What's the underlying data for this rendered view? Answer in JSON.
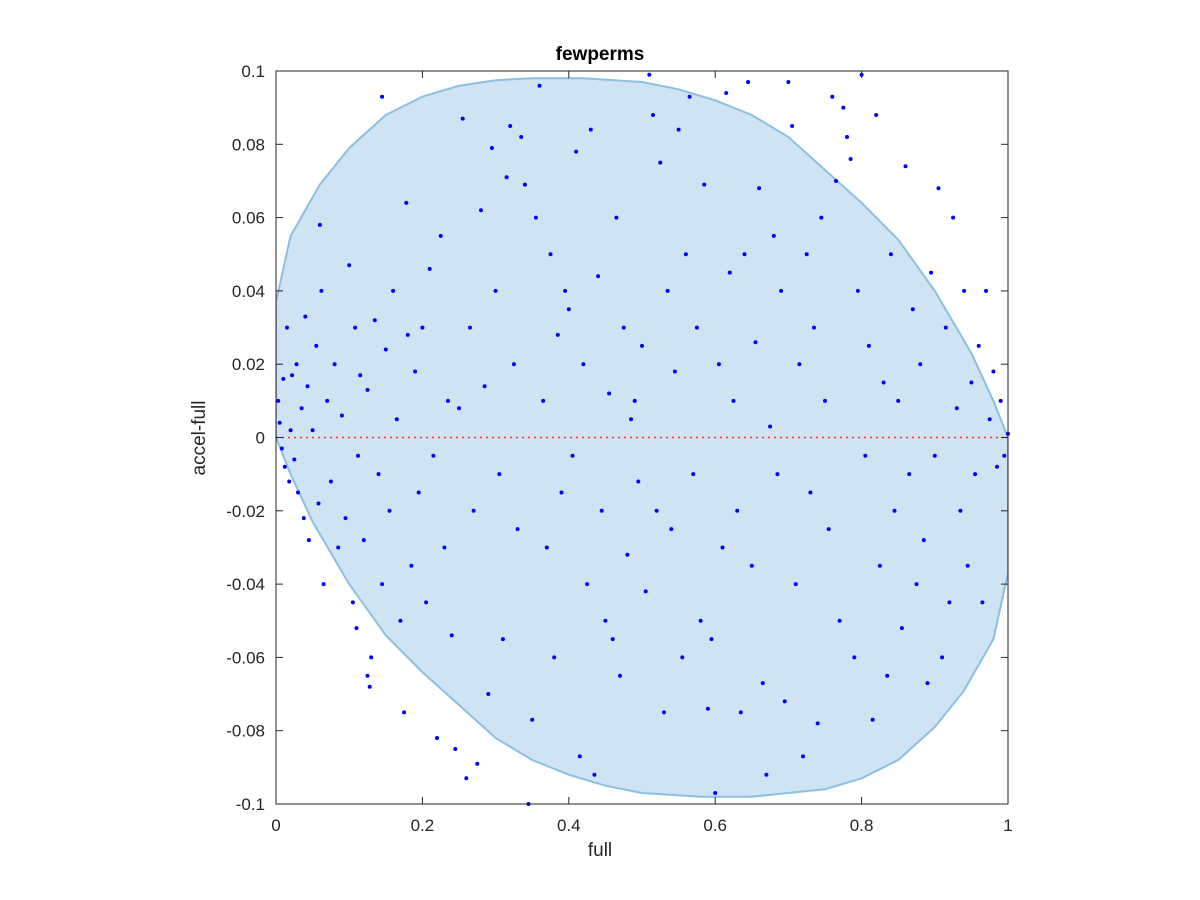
{
  "chart_data": {
    "type": "scatter",
    "title": "fewperms",
    "xlabel": "full",
    "ylabel": "accel-full",
    "xlim": [
      0,
      1
    ],
    "ylim": [
      -0.1,
      0.1
    ],
    "xticks": [
      "0",
      "0.2",
      "0.4",
      "0.6",
      "0.8",
      "1"
    ],
    "yticks": [
      "-0.1",
      "-0.08",
      "-0.06",
      "-0.04",
      "-0.02",
      "0",
      "0.02",
      "0.04",
      "0.06",
      "0.08",
      "0.1"
    ],
    "grid": false,
    "reference_line": {
      "y": 0,
      "style": "dotted",
      "color": "#ff3333"
    },
    "shaded_region": {
      "type": "ellipse",
      "color": "#cfe3f2",
      "edge_color": "#8cc0e0",
      "boundary": [
        [
          0.0,
          0.037
        ],
        [
          0.02,
          0.055
        ],
        [
          0.06,
          0.069
        ],
        [
          0.1,
          0.079
        ],
        [
          0.15,
          0.088
        ],
        [
          0.2,
          0.093
        ],
        [
          0.25,
          0.096
        ],
        [
          0.3,
          0.0975
        ],
        [
          0.35,
          0.098
        ],
        [
          0.42,
          0.098
        ],
        [
          0.5,
          0.097
        ],
        [
          0.55,
          0.095
        ],
        [
          0.6,
          0.092
        ],
        [
          0.65,
          0.088
        ],
        [
          0.7,
          0.082
        ],
        [
          0.75,
          0.073
        ],
        [
          0.8,
          0.064
        ],
        [
          0.85,
          0.054
        ],
        [
          0.9,
          0.04
        ],
        [
          0.95,
          0.023
        ],
        [
          0.98,
          0.01
        ],
        [
          1.0,
          0.0
        ],
        [
          1.0,
          -0.037
        ],
        [
          0.98,
          -0.055
        ],
        [
          0.94,
          -0.069
        ],
        [
          0.9,
          -0.079
        ],
        [
          0.85,
          -0.088
        ],
        [
          0.8,
          -0.093
        ],
        [
          0.75,
          -0.096
        ],
        [
          0.7,
          -0.097
        ],
        [
          0.65,
          -0.098
        ],
        [
          0.58,
          -0.098
        ],
        [
          0.5,
          -0.097
        ],
        [
          0.45,
          -0.095
        ],
        [
          0.4,
          -0.092
        ],
        [
          0.35,
          -0.088
        ],
        [
          0.3,
          -0.082
        ],
        [
          0.25,
          -0.073
        ],
        [
          0.2,
          -0.064
        ],
        [
          0.15,
          -0.054
        ],
        [
          0.1,
          -0.04
        ],
        [
          0.05,
          -0.023
        ],
        [
          0.02,
          -0.01
        ],
        [
          0.0,
          0.0
        ]
      ]
    },
    "series": [
      {
        "color": "#0000ff",
        "marker": "dot",
        "points": [
          [
            0.003,
            0.01
          ],
          [
            0.005,
            0.004
          ],
          [
            0.008,
            -0.003
          ],
          [
            0.01,
            0.016
          ],
          [
            0.012,
            -0.008
          ],
          [
            0.015,
            0.03
          ],
          [
            0.018,
            -0.012
          ],
          [
            0.02,
            0.002
          ],
          [
            0.022,
            0.017
          ],
          [
            0.025,
            -0.006
          ],
          [
            0.028,
            0.02
          ],
          [
            0.03,
            -0.015
          ],
          [
            0.035,
            0.008
          ],
          [
            0.038,
            -0.022
          ],
          [
            0.04,
            0.033
          ],
          [
            0.043,
            0.014
          ],
          [
            0.045,
            -0.028
          ],
          [
            0.05,
            0.002
          ],
          [
            0.055,
            0.025
          ],
          [
            0.058,
            -0.018
          ],
          [
            0.06,
            0.058
          ],
          [
            0.062,
            0.04
          ],
          [
            0.065,
            -0.04
          ],
          [
            0.07,
            0.01
          ],
          [
            0.075,
            -0.012
          ],
          [
            0.08,
            0.02
          ],
          [
            0.085,
            -0.03
          ],
          [
            0.09,
            0.006
          ],
          [
            0.095,
            -0.022
          ],
          [
            0.1,
            0.047
          ],
          [
            0.105,
            -0.045
          ],
          [
            0.108,
            0.03
          ],
          [
            0.11,
            -0.052
          ],
          [
            0.112,
            -0.005
          ],
          [
            0.115,
            0.017
          ],
          [
            0.12,
            -0.028
          ],
          [
            0.125,
            0.013
          ],
          [
            0.125,
            -0.065
          ],
          [
            0.128,
            -0.068
          ],
          [
            0.13,
            -0.06
          ],
          [
            0.135,
            0.032
          ],
          [
            0.14,
            -0.01
          ],
          [
            0.145,
            -0.04
          ],
          [
            0.145,
            0.093
          ],
          [
            0.15,
            0.024
          ],
          [
            0.155,
            -0.02
          ],
          [
            0.16,
            0.04
          ],
          [
            0.165,
            0.005
          ],
          [
            0.17,
            -0.05
          ],
          [
            0.175,
            -0.075
          ],
          [
            0.178,
            0.064
          ],
          [
            0.18,
            0.028
          ],
          [
            0.185,
            -0.035
          ],
          [
            0.19,
            0.018
          ],
          [
            0.195,
            -0.015
          ],
          [
            0.2,
            0.03
          ],
          [
            0.205,
            -0.045
          ],
          [
            0.21,
            0.046
          ],
          [
            0.215,
            -0.005
          ],
          [
            0.22,
            -0.082
          ],
          [
            0.225,
            0.055
          ],
          [
            0.23,
            -0.03
          ],
          [
            0.235,
            0.01
          ],
          [
            0.24,
            -0.054
          ],
          [
            0.245,
            -0.085
          ],
          [
            0.25,
            0.008
          ],
          [
            0.255,
            0.087
          ],
          [
            0.26,
            -0.093
          ],
          [
            0.265,
            0.03
          ],
          [
            0.27,
            -0.02
          ],
          [
            0.275,
            -0.089
          ],
          [
            0.28,
            0.062
          ],
          [
            0.285,
            0.014
          ],
          [
            0.29,
            -0.07
          ],
          [
            0.295,
            0.079
          ],
          [
            0.3,
            0.04
          ],
          [
            0.305,
            -0.01
          ],
          [
            0.31,
            -0.055
          ],
          [
            0.315,
            0.071
          ],
          [
            0.32,
            0.085
          ],
          [
            0.325,
            0.02
          ],
          [
            0.33,
            -0.025
          ],
          [
            0.335,
            0.082
          ],
          [
            0.34,
            0.069
          ],
          [
            0.345,
            -0.1
          ],
          [
            0.35,
            -0.077
          ],
          [
            0.355,
            0.06
          ],
          [
            0.36,
            0.096
          ],
          [
            0.365,
            0.01
          ],
          [
            0.37,
            -0.03
          ],
          [
            0.375,
            0.05
          ],
          [
            0.38,
            -0.06
          ],
          [
            0.385,
            0.028
          ],
          [
            0.39,
            -0.015
          ],
          [
            0.395,
            0.04
          ],
          [
            0.4,
            0.035
          ],
          [
            0.405,
            -0.005
          ],
          [
            0.41,
            0.078
          ],
          [
            0.415,
            -0.087
          ],
          [
            0.42,
            0.02
          ],
          [
            0.425,
            -0.04
          ],
          [
            0.43,
            0.084
          ],
          [
            0.435,
            -0.092
          ],
          [
            0.44,
            0.044
          ],
          [
            0.445,
            -0.02
          ],
          [
            0.45,
            -0.05
          ],
          [
            0.455,
            0.012
          ],
          [
            0.46,
            -0.055
          ],
          [
            0.465,
            0.06
          ],
          [
            0.47,
            -0.065
          ],
          [
            0.475,
            0.03
          ],
          [
            0.48,
            -0.032
          ],
          [
            0.485,
            0.005
          ],
          [
            0.49,
            0.01
          ],
          [
            0.495,
            -0.012
          ],
          [
            0.5,
            0.025
          ],
          [
            0.505,
            -0.042
          ],
          [
            0.51,
            0.099
          ],
          [
            0.515,
            0.088
          ],
          [
            0.52,
            -0.02
          ],
          [
            0.525,
            0.075
          ],
          [
            0.53,
            -0.075
          ],
          [
            0.535,
            0.04
          ],
          [
            0.54,
            -0.025
          ],
          [
            0.545,
            0.018
          ],
          [
            0.55,
            0.084
          ],
          [
            0.555,
            -0.06
          ],
          [
            0.56,
            0.05
          ],
          [
            0.565,
            0.093
          ],
          [
            0.57,
            -0.01
          ],
          [
            0.575,
            0.03
          ],
          [
            0.58,
            -0.05
          ],
          [
            0.585,
            0.069
          ],
          [
            0.59,
            -0.074
          ],
          [
            0.595,
            -0.055
          ],
          [
            0.6,
            -0.097
          ],
          [
            0.605,
            0.02
          ],
          [
            0.61,
            -0.03
          ],
          [
            0.615,
            0.094
          ],
          [
            0.62,
            0.045
          ],
          [
            0.625,
            0.01
          ],
          [
            0.63,
            -0.02
          ],
          [
            0.635,
            -0.075
          ],
          [
            0.64,
            0.05
          ],
          [
            0.645,
            0.097
          ],
          [
            0.65,
            -0.035
          ],
          [
            0.655,
            0.026
          ],
          [
            0.66,
            0.068
          ],
          [
            0.665,
            -0.067
          ],
          [
            0.67,
            -0.092
          ],
          [
            0.675,
            0.003
          ],
          [
            0.68,
            0.055
          ],
          [
            0.685,
            -0.01
          ],
          [
            0.69,
            0.04
          ],
          [
            0.695,
            -0.072
          ],
          [
            0.7,
            0.097
          ],
          [
            0.705,
            0.085
          ],
          [
            0.71,
            -0.04
          ],
          [
            0.715,
            0.02
          ],
          [
            0.72,
            -0.087
          ],
          [
            0.725,
            0.05
          ],
          [
            0.73,
            -0.015
          ],
          [
            0.735,
            0.03
          ],
          [
            0.74,
            -0.078
          ],
          [
            0.745,
            0.06
          ],
          [
            0.75,
            0.01
          ],
          [
            0.755,
            -0.025
          ],
          [
            0.76,
            0.093
          ],
          [
            0.765,
            0.07
          ],
          [
            0.77,
            -0.05
          ],
          [
            0.775,
            0.09
          ],
          [
            0.78,
            0.082
          ],
          [
            0.785,
            0.076
          ],
          [
            0.79,
            -0.06
          ],
          [
            0.795,
            0.04
          ],
          [
            0.8,
            0.099
          ],
          [
            0.805,
            -0.005
          ],
          [
            0.81,
            0.025
          ],
          [
            0.815,
            -0.077
          ],
          [
            0.82,
            0.088
          ],
          [
            0.825,
            -0.035
          ],
          [
            0.83,
            0.015
          ],
          [
            0.835,
            -0.065
          ],
          [
            0.84,
            0.05
          ],
          [
            0.845,
            -0.02
          ],
          [
            0.85,
            0.01
          ],
          [
            0.855,
            -0.052
          ],
          [
            0.86,
            0.074
          ],
          [
            0.865,
            -0.01
          ],
          [
            0.87,
            0.035
          ],
          [
            0.875,
            -0.04
          ],
          [
            0.88,
            0.02
          ],
          [
            0.885,
            -0.028
          ],
          [
            0.89,
            -0.067
          ],
          [
            0.895,
            0.045
          ],
          [
            0.9,
            -0.005
          ],
          [
            0.905,
            0.068
          ],
          [
            0.91,
            -0.06
          ],
          [
            0.915,
            0.03
          ],
          [
            0.92,
            -0.045
          ],
          [
            0.925,
            0.06
          ],
          [
            0.93,
            0.008
          ],
          [
            0.935,
            -0.02
          ],
          [
            0.94,
            0.04
          ],
          [
            0.945,
            -0.035
          ],
          [
            0.95,
            0.015
          ],
          [
            0.955,
            -0.01
          ],
          [
            0.96,
            0.025
          ],
          [
            0.965,
            -0.045
          ],
          [
            0.97,
            0.04
          ],
          [
            0.975,
            0.005
          ],
          [
            0.98,
            0.018
          ],
          [
            0.985,
            -0.008
          ],
          [
            0.99,
            0.01
          ],
          [
            0.995,
            -0.005
          ],
          [
            1.0,
            0.001
          ]
        ]
      }
    ]
  }
}
